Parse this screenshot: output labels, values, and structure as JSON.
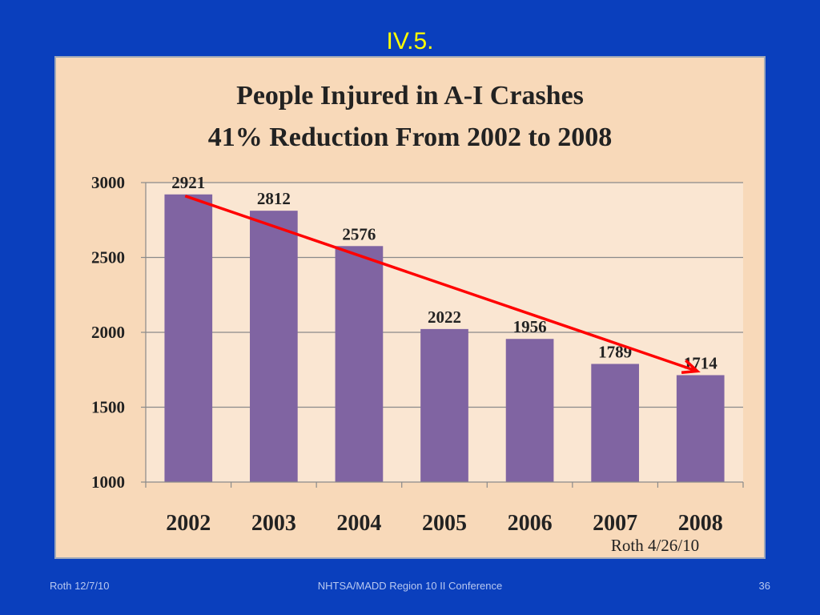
{
  "slide": {
    "title": "IV.5.",
    "footer_left": "Roth 12/7/10",
    "footer_center": "NHTSA/MADD Region 10 II Conference",
    "footer_right": "36"
  },
  "colors": {
    "background": "#0a3fbd",
    "title": "#ffff00",
    "chart_background": "#f8d9b9",
    "plot_background": "#fae6d2",
    "bar": "#8064a2",
    "trend_arrow": "#ff0000"
  },
  "chart_data": {
    "type": "bar",
    "title": "People Injured  in A-I Crashes",
    "subtitle": "41% Reduction From 2002 to 2008",
    "categories": [
      "2002",
      "2003",
      "2004",
      "2005",
      "2006",
      "2007",
      "2008"
    ],
    "values": [
      2921,
      2812,
      2576,
      2022,
      1956,
      1789,
      1714
    ],
    "data_labels": [
      "2921",
      "2812",
      "2576",
      "2022",
      "1956",
      "1789",
      "1714"
    ],
    "ylim": [
      1000,
      3000
    ],
    "yticks": [
      1000,
      1500,
      2000,
      2500,
      3000
    ],
    "ytick_labels": [
      "1000",
      "1500",
      "2000",
      "2500",
      "3000"
    ],
    "grid": true,
    "trend_arrow": {
      "from_category": "2002",
      "to_category": "2008"
    },
    "annotation": "Roth 4/26/10"
  }
}
